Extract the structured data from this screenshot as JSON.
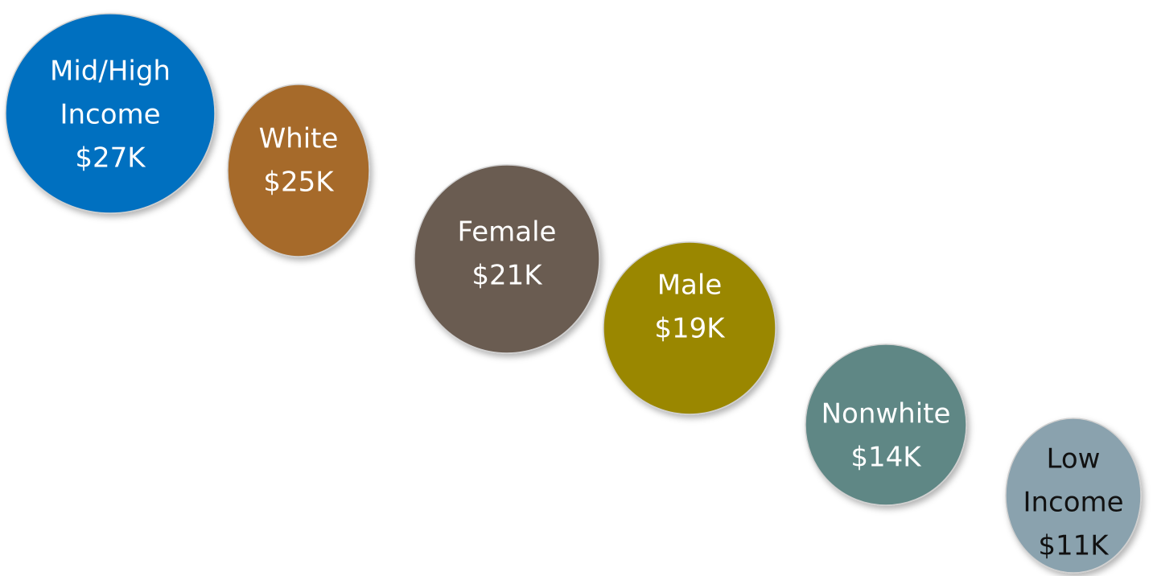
{
  "nodes": [
    {
      "label_lines": [
        "Mid/High",
        "Income"
      ],
      "amount": "$27K",
      "color": "#0070c0",
      "text_color": "#ffffff"
    },
    {
      "label_lines": [
        "White"
      ],
      "amount": "$25K",
      "color": "#a66b2c",
      "text_color": "#ffffff"
    },
    {
      "label_lines": [
        "Female"
      ],
      "amount": "$21K",
      "color": "#6b5b51",
      "text_color": "#ffffff"
    },
    {
      "label_lines": [
        "Male"
      ],
      "amount": "$19K",
      "color": "#9a8700",
      "text_color": "#ffffff"
    },
    {
      "label_lines": [
        "Nonwhite"
      ],
      "amount": "$14K",
      "color": "#5f8785",
      "text_color": "#ffffff"
    },
    {
      "label_lines": [
        "Low",
        "Income"
      ],
      "amount": "$11K",
      "color": "#8aa2ae",
      "text_color": "#111111"
    }
  ]
}
